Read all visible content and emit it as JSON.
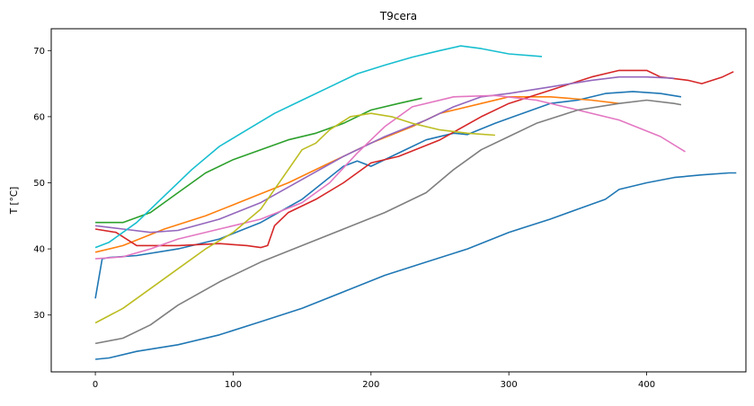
{
  "chart_data": {
    "type": "line",
    "title": "T9cera",
    "xlabel": "",
    "ylabel": "T [°C]",
    "xlim": [
      -32,
      472
    ],
    "ylim": [
      21.4,
      73.3
    ],
    "xticks": [
      0,
      100,
      200,
      300,
      400
    ],
    "yticks": [
      30,
      40,
      50,
      60,
      70
    ],
    "grid": false,
    "legend": "none",
    "series": [
      {
        "color": "#1f77b4",
        "points": [
          [
            0,
            32.5
          ],
          [
            5,
            38.5
          ],
          [
            10,
            38.7
          ],
          [
            30,
            39.0
          ],
          [
            60,
            40.0
          ],
          [
            90,
            41.5
          ],
          [
            120,
            44.0
          ],
          [
            150,
            47.5
          ],
          [
            180,
            52.5
          ],
          [
            190,
            53.3
          ],
          [
            200,
            52.5
          ],
          [
            220,
            54.5
          ],
          [
            240,
            56.5
          ],
          [
            260,
            57.5
          ],
          [
            270,
            57.3
          ],
          [
            290,
            59.0
          ],
          [
            310,
            60.5
          ],
          [
            330,
            62.0
          ],
          [
            350,
            62.5
          ],
          [
            370,
            63.5
          ],
          [
            390,
            63.8
          ],
          [
            410,
            63.5
          ],
          [
            425,
            63.0
          ]
        ]
      },
      {
        "color": "#ff7f0e",
        "points": [
          [
            0,
            39.5
          ],
          [
            20,
            40.5
          ],
          [
            50,
            43.0
          ],
          [
            80,
            45.0
          ],
          [
            110,
            47.5
          ],
          [
            140,
            50.0
          ],
          [
            170,
            53.0
          ],
          [
            200,
            56.0
          ],
          [
            230,
            58.5
          ],
          [
            250,
            60.5
          ],
          [
            280,
            62.0
          ],
          [
            300,
            63.0
          ],
          [
            330,
            63.0
          ],
          [
            360,
            62.5
          ],
          [
            380,
            62.0
          ]
        ]
      },
      {
        "color": "#2ca02c",
        "points": [
          [
            0,
            44.0
          ],
          [
            20,
            44.0
          ],
          [
            40,
            45.5
          ],
          [
            60,
            48.5
          ],
          [
            80,
            51.5
          ],
          [
            100,
            53.5
          ],
          [
            120,
            55.0
          ],
          [
            140,
            56.5
          ],
          [
            160,
            57.5
          ],
          [
            180,
            59.0
          ],
          [
            200,
            61.0
          ],
          [
            220,
            62.0
          ],
          [
            237,
            62.8
          ]
        ]
      },
      {
        "color": "#d62728",
        "points": [
          [
            0,
            43.0
          ],
          [
            15,
            42.5
          ],
          [
            30,
            40.5
          ],
          [
            60,
            40.5
          ],
          [
            90,
            40.8
          ],
          [
            110,
            40.5
          ],
          [
            120,
            40.2
          ],
          [
            125,
            40.5
          ],
          [
            130,
            43.5
          ],
          [
            140,
            45.5
          ],
          [
            160,
            47.5
          ],
          [
            180,
            50.0
          ],
          [
            200,
            53.0
          ],
          [
            220,
            54.0
          ],
          [
            250,
            56.5
          ],
          [
            280,
            60.0
          ],
          [
            300,
            62.0
          ],
          [
            330,
            64.0
          ],
          [
            360,
            66.0
          ],
          [
            380,
            67.0
          ],
          [
            400,
            67.0
          ],
          [
            410,
            66.0
          ],
          [
            430,
            65.5
          ],
          [
            440,
            65.0
          ],
          [
            455,
            66.0
          ],
          [
            463,
            66.8
          ]
        ]
      },
      {
        "color": "#9467bd",
        "points": [
          [
            0,
            43.5
          ],
          [
            20,
            43.0
          ],
          [
            40,
            42.5
          ],
          [
            60,
            42.8
          ],
          [
            90,
            44.5
          ],
          [
            120,
            47.0
          ],
          [
            150,
            50.5
          ],
          [
            180,
            54.0
          ],
          [
            210,
            57.0
          ],
          [
            240,
            59.5
          ],
          [
            260,
            61.5
          ],
          [
            280,
            63.0
          ],
          [
            300,
            63.5
          ],
          [
            330,
            64.5
          ],
          [
            360,
            65.5
          ],
          [
            380,
            66.0
          ],
          [
            400,
            66.0
          ],
          [
            420,
            65.8
          ]
        ]
      },
      {
        "color": "#e377c2",
        "points": [
          [
            0,
            38.5
          ],
          [
            20,
            38.8
          ],
          [
            40,
            40.0
          ],
          [
            60,
            41.5
          ],
          [
            90,
            43.0
          ],
          [
            120,
            44.5
          ],
          [
            150,
            47.0
          ],
          [
            170,
            50.0
          ],
          [
            190,
            54.5
          ],
          [
            210,
            58.5
          ],
          [
            230,
            61.5
          ],
          [
            260,
            63.0
          ],
          [
            290,
            63.2
          ],
          [
            320,
            62.5
          ],
          [
            350,
            61.0
          ],
          [
            380,
            59.5
          ],
          [
            410,
            57.0
          ],
          [
            428,
            54.7
          ]
        ]
      },
      {
        "color": "#7f7f7f",
        "points": [
          [
            0,
            25.7
          ],
          [
            20,
            26.5
          ],
          [
            40,
            28.5
          ],
          [
            60,
            31.5
          ],
          [
            90,
            35.0
          ],
          [
            120,
            38.0
          ],
          [
            150,
            40.5
          ],
          [
            180,
            43.0
          ],
          [
            210,
            45.5
          ],
          [
            240,
            48.5
          ],
          [
            260,
            52.0
          ],
          [
            280,
            55.0
          ],
          [
            300,
            57.0
          ],
          [
            320,
            59.0
          ],
          [
            350,
            61.0
          ],
          [
            380,
            62.0
          ],
          [
            400,
            62.5
          ],
          [
            420,
            62.0
          ],
          [
            425,
            61.8
          ]
        ]
      },
      {
        "color": "#bcbd22",
        "points": [
          [
            0,
            28.8
          ],
          [
            20,
            31.0
          ],
          [
            40,
            34.0
          ],
          [
            60,
            37.0
          ],
          [
            80,
            40.0
          ],
          [
            100,
            42.5
          ],
          [
            120,
            46.0
          ],
          [
            140,
            52.0
          ],
          [
            150,
            55.0
          ],
          [
            160,
            56.0
          ],
          [
            170,
            58.0
          ],
          [
            185,
            60.0
          ],
          [
            200,
            60.5
          ],
          [
            215,
            60.0
          ],
          [
            230,
            59.0
          ],
          [
            250,
            58.0
          ],
          [
            270,
            57.5
          ],
          [
            290,
            57.2
          ]
        ]
      },
      {
        "color": "#17becf",
        "points": [
          [
            0,
            40.2
          ],
          [
            10,
            41.0
          ],
          [
            30,
            44.0
          ],
          [
            50,
            48.0
          ],
          [
            70,
            52.0
          ],
          [
            90,
            55.5
          ],
          [
            110,
            58.0
          ],
          [
            130,
            60.5
          ],
          [
            150,
            62.5
          ],
          [
            170,
            64.5
          ],
          [
            190,
            66.5
          ],
          [
            210,
            67.8
          ],
          [
            230,
            69.0
          ],
          [
            250,
            70.0
          ],
          [
            265,
            70.7
          ],
          [
            280,
            70.3
          ],
          [
            300,
            69.5
          ],
          [
            324,
            69.1
          ]
        ]
      },
      {
        "color": "#1f77b4",
        "points": [
          [
            0,
            23.3
          ],
          [
            10,
            23.5
          ],
          [
            30,
            24.5
          ],
          [
            60,
            25.5
          ],
          [
            90,
            27.0
          ],
          [
            120,
            29.0
          ],
          [
            150,
            31.0
          ],
          [
            180,
            33.5
          ],
          [
            210,
            36.0
          ],
          [
            240,
            38.0
          ],
          [
            270,
            40.0
          ],
          [
            300,
            42.5
          ],
          [
            330,
            44.5
          ],
          [
            350,
            46.0
          ],
          [
            370,
            47.5
          ],
          [
            380,
            49.0
          ],
          [
            400,
            50.0
          ],
          [
            420,
            50.8
          ],
          [
            440,
            51.2
          ],
          [
            460,
            51.5
          ],
          [
            465,
            51.5
          ]
        ]
      }
    ]
  }
}
